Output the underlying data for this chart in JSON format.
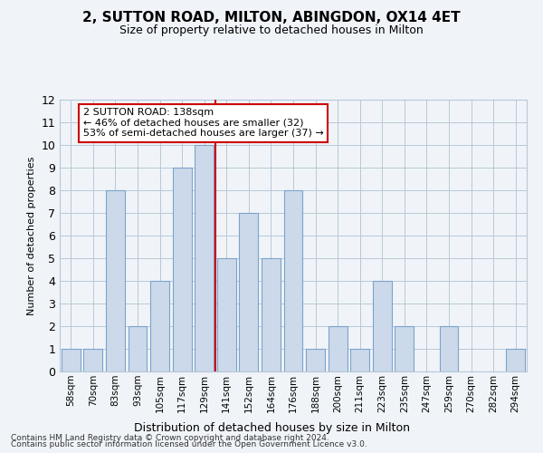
{
  "title_line1": "2, SUTTON ROAD, MILTON, ABINGDON, OX14 4ET",
  "title_line2": "Size of property relative to detached houses in Milton",
  "xlabel": "Distribution of detached houses by size in Milton",
  "ylabel": "Number of detached properties",
  "categories": [
    "58sqm",
    "70sqm",
    "83sqm",
    "93sqm",
    "105sqm",
    "117sqm",
    "129sqm",
    "141sqm",
    "152sqm",
    "164sqm",
    "176sqm",
    "188sqm",
    "200sqm",
    "211sqm",
    "223sqm",
    "235sqm",
    "247sqm",
    "259sqm",
    "270sqm",
    "282sqm",
    "294sqm"
  ],
  "values": [
    1,
    1,
    8,
    2,
    4,
    9,
    10,
    5,
    7,
    5,
    8,
    1,
    2,
    1,
    4,
    2,
    0,
    2,
    0,
    0,
    1
  ],
  "bar_color": "#ccd9ea",
  "bar_edge_color": "#7ba3cc",
  "reference_line_x": 6.5,
  "reference_line_color": "#cc0000",
  "annotation_text": "2 SUTTON ROAD: 138sqm\n← 46% of detached houses are smaller (32)\n53% of semi-detached houses are larger (37) →",
  "annotation_box_color": "#ffffff",
  "annotation_box_edge_color": "#cc0000",
  "ylim": [
    0,
    12
  ],
  "yticks": [
    0,
    1,
    2,
    3,
    4,
    5,
    6,
    7,
    8,
    9,
    10,
    11,
    12
  ],
  "footer_line1": "Contains HM Land Registry data © Crown copyright and database right 2024.",
  "footer_line2": "Contains public sector information licensed under the Open Government Licence v3.0.",
  "background_color": "#f0f4f8",
  "grid_color": "#b8c8d8"
}
